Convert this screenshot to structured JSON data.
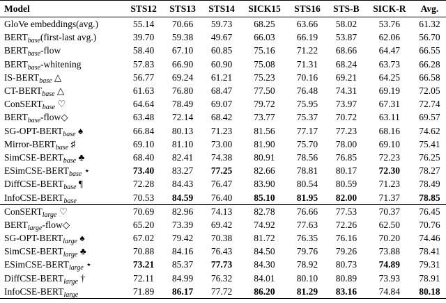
{
  "table": {
    "header": [
      "Model",
      "STS12",
      "STS13",
      "STS14",
      "SICK15",
      "STS16",
      "STS-B",
      "SICK-R",
      "Avg."
    ],
    "groups": [
      {
        "rows": [
          {
            "model": [
              "GloVe embeddings(avg.)"
            ],
            "values": [
              "55.14",
              "70.66",
              "59.73",
              "68.25",
              "63.66",
              "58.02",
              "53.76",
              "61.32"
            ],
            "bold": []
          },
          {
            "model": [
              "BERT",
              {
                "sub": "base"
              },
              "(first-last avg.)"
            ],
            "values": [
              "39.70",
              "59.38",
              "49.67",
              "66.03",
              "66.19",
              "53.87",
              "62.06",
              "56.70"
            ],
            "bold": []
          },
          {
            "model": [
              "BERT",
              {
                "sub": "base"
              },
              "-flow"
            ],
            "values": [
              "58.40",
              "67.10",
              "60.85",
              "75.16",
              "71.22",
              "68.66",
              "64.47",
              "66.55"
            ],
            "bold": []
          },
          {
            "model": [
              "BERT",
              {
                "sub": "base"
              },
              "-whitening"
            ],
            "values": [
              "57.83",
              "66.90",
              "60.90",
              "75.08",
              "71.31",
              "68.24",
              "63.73",
              "66.28"
            ],
            "bold": []
          },
          {
            "model": [
              "IS-BERT",
              {
                "sub": "base"
              },
              " △"
            ],
            "values": [
              "56.77",
              "69.24",
              "61.21",
              "75.23",
              "70.16",
              "69.21",
              "64.25",
              "66.58"
            ],
            "bold": []
          },
          {
            "model": [
              "CT-BERT",
              {
                "sub": "base"
              },
              " △"
            ],
            "values": [
              "61.63",
              "76.80",
              "68.47",
              "77.50",
              "76.48",
              "74.31",
              "69.19",
              "72.05"
            ],
            "bold": []
          },
          {
            "model": [
              "ConSERT",
              {
                "sub": "base"
              },
              " ♡"
            ],
            "values": [
              "64.64",
              "78.49",
              "69.07",
              "79.72",
              "75.95",
              "73.97",
              "67.31",
              "72.74"
            ],
            "bold": []
          },
          {
            "model": [
              "BERT",
              {
                "sub": "base"
              },
              "-flow◇"
            ],
            "values": [
              "63.48",
              "72.14",
              "68.42",
              "73.77",
              "75.37",
              "70.72",
              "63.11",
              "69.57"
            ],
            "bold": []
          },
          {
            "model": [
              "SG-OPT-BERT",
              {
                "sub": "base"
              },
              " ♠"
            ],
            "values": [
              "66.84",
              "80.13",
              "71.23",
              "81.56",
              "77.17",
              "77.23",
              "68.16",
              "74.62"
            ],
            "bold": []
          },
          {
            "model": [
              "Mirror-BERT",
              {
                "sub": "base"
              },
              " ♯"
            ],
            "values": [
              "69.10",
              "81.10",
              "73.00",
              "81.90",
              "75.70",
              "78.00",
              "69.10",
              "75.41"
            ],
            "bold": []
          },
          {
            "model": [
              "SimCSE-BERT",
              {
                "sub": "base"
              },
              " ♣"
            ],
            "values": [
              "68.40",
              "82.41",
              "74.38",
              "80.91",
              "78.56",
              "76.85",
              "72.23",
              "76.25"
            ],
            "bold": []
          },
          {
            "model": [
              "ESimCSE-BERT",
              {
                "sub": "base"
              },
              " ⋆"
            ],
            "values": [
              "73.40",
              "83.27",
              "77.25",
              "82.66",
              "78.81",
              "80.17",
              "72.30",
              "78.27"
            ],
            "bold": [
              0,
              2,
              6
            ]
          },
          {
            "model": [
              "DiffCSE-BERT",
              {
                "sub": "base"
              },
              " ¶"
            ],
            "values": [
              "72.28",
              "84.43",
              "76.47",
              "83.90",
              "80.54",
              "80.59",
              "71.23",
              "78.49"
            ],
            "bold": []
          },
          {
            "model": [
              "InfoCSE-BERT",
              {
                "sub": "base"
              }
            ],
            "values": [
              "70.53",
              "84.59",
              "76.40",
              "85.10",
              "81.95",
              "82.00",
              "71.37",
              "78.85"
            ],
            "bold": [
              1,
              3,
              4,
              5,
              7
            ]
          }
        ]
      },
      {
        "rows": [
          {
            "model": [
              "ConSERT",
              {
                "sub": "large"
              },
              " ♡"
            ],
            "values": [
              "70.69",
              "82.96",
              "74.13",
              "82.78",
              "76.66",
              "77.53",
              "70.37",
              "76.45"
            ],
            "bold": []
          },
          {
            "model": [
              "BERT",
              {
                "sub": "large"
              },
              "-flow◇"
            ],
            "values": [
              "65.20",
              "73.39",
              "69.42",
              "74.92",
              "77.63",
              "72.26",
              "62.50",
              "70.76"
            ],
            "bold": []
          },
          {
            "model": [
              "SG-OPT-BERT",
              {
                "sub": "large"
              },
              " ♠"
            ],
            "values": [
              "67.02",
              "79.42",
              "70.38",
              "81.72",
              "76.35",
              "76.16",
              "70.20",
              "74.46"
            ],
            "bold": []
          },
          {
            "model": [
              "SimCSE-BERT",
              {
                "sub": "large"
              },
              " ♣"
            ],
            "values": [
              "70.88",
              "84.16",
              "76.43",
              "84.50",
              "79.76",
              "79.26",
              "73.88",
              "78.41"
            ],
            "bold": []
          },
          {
            "model": [
              "ESimCSE-BERT",
              {
                "sub": "large"
              },
              " ⋆"
            ],
            "values": [
              "73.21",
              "85.37",
              "77.73",
              "84.30",
              "78.92",
              "80.73",
              "74.89",
              "79.31"
            ],
            "bold": [
              0,
              2,
              6
            ]
          },
          {
            "model": [
              "DiffCSE-BERT",
              {
                "sub": "large"
              },
              " †"
            ],
            "values": [
              "72.11",
              "84.99",
              "76.32",
              "84.01",
              "80.10",
              "80.89",
              "73.93",
              "78.91"
            ],
            "bold": []
          },
          {
            "model": [
              "InfoCSE-BERT",
              {
                "sub": "large"
              }
            ],
            "values": [
              "71.89",
              "86.17",
              "77.72",
              "86.20",
              "81.29",
              "83.16",
              "74.84",
              "80.18"
            ],
            "bold": [
              1,
              3,
              4,
              5,
              7
            ]
          }
        ]
      }
    ]
  }
}
